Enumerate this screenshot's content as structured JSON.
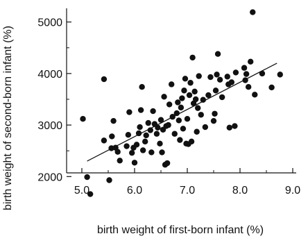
{
  "chart_data": {
    "type": "scatter",
    "title": "",
    "xlabel": "birth weight of first-born infant (%)",
    "ylabel": "birth weight of second-born infant (%)",
    "xlim": [
      5.0,
      9.0
    ],
    "ylim": [
      1600,
      5400
    ],
    "x_ticks": [
      5.0,
      6.0,
      7.0,
      8.0,
      9.0
    ],
    "x_tick_labels": [
      "5.0",
      "6.0",
      "7.0",
      "8.0",
      "9.0"
    ],
    "y_ticks": [
      2000,
      3000,
      4000,
      5000
    ],
    "y_tick_labels": [
      "2000",
      "3000",
      "4000",
      "5000"
    ],
    "grid": false,
    "legend": "none",
    "point_color": "#111111",
    "trend_line": {
      "x": [
        5.1,
        8.7
      ],
      "y": [
        2300,
        4200
      ]
    },
    "points": [
      {
        "x": 5.02,
        "y": 3120
      },
      {
        "x": 5.1,
        "y": 1990
      },
      {
        "x": 5.16,
        "y": 1660
      },
      {
        "x": 5.42,
        "y": 3890
      },
      {
        "x": 5.42,
        "y": 2700
      },
      {
        "x": 5.52,
        "y": 1930
      },
      {
        "x": 5.56,
        "y": 2550
      },
      {
        "x": 5.57,
        "y": 2780
      },
      {
        "x": 5.6,
        "y": 3080
      },
      {
        "x": 5.64,
        "y": 2560
      },
      {
        "x": 5.68,
        "y": 2480
      },
      {
        "x": 5.72,
        "y": 2310
      },
      {
        "x": 5.85,
        "y": 2590
      },
      {
        "x": 5.88,
        "y": 2810
      },
      {
        "x": 5.9,
        "y": 3250
      },
      {
        "x": 5.95,
        "y": 2460
      },
      {
        "x": 5.98,
        "y": 2560
      },
      {
        "x": 6.0,
        "y": 2270
      },
      {
        "x": 6.04,
        "y": 2620
      },
      {
        "x": 6.08,
        "y": 2840
      },
      {
        "x": 6.1,
        "y": 2960
      },
      {
        "x": 6.12,
        "y": 3290
      },
      {
        "x": 6.14,
        "y": 3740
      },
      {
        "x": 6.16,
        "y": 2510
      },
      {
        "x": 6.2,
        "y": 2680
      },
      {
        "x": 6.22,
        "y": 2800
      },
      {
        "x": 6.26,
        "y": 3040
      },
      {
        "x": 6.3,
        "y": 2900
      },
      {
        "x": 6.32,
        "y": 2470
      },
      {
        "x": 6.35,
        "y": 3270
      },
      {
        "x": 6.38,
        "y": 3020
      },
      {
        "x": 6.42,
        "y": 2830
      },
      {
        "x": 6.44,
        "y": 2950
      },
      {
        "x": 6.48,
        "y": 2640
      },
      {
        "x": 6.5,
        "y": 3100
      },
      {
        "x": 6.52,
        "y": 2470
      },
      {
        "x": 6.54,
        "y": 2910
      },
      {
        "x": 6.56,
        "y": 3550
      },
      {
        "x": 6.58,
        "y": 2230
      },
      {
        "x": 6.6,
        "y": 2980
      },
      {
        "x": 6.62,
        "y": 2260
      },
      {
        "x": 6.64,
        "y": 3000
      },
      {
        "x": 6.66,
        "y": 3400
      },
      {
        "x": 6.7,
        "y": 3790
      },
      {
        "x": 6.72,
        "y": 3160
      },
      {
        "x": 6.76,
        "y": 2830
      },
      {
        "x": 6.8,
        "y": 3230
      },
      {
        "x": 6.82,
        "y": 3440
      },
      {
        "x": 6.84,
        "y": 3090
      },
      {
        "x": 6.86,
        "y": 2710
      },
      {
        "x": 6.88,
        "y": 3340
      },
      {
        "x": 6.9,
        "y": 3520
      },
      {
        "x": 6.92,
        "y": 2930
      },
      {
        "x": 6.94,
        "y": 3670
      },
      {
        "x": 6.96,
        "y": 3900
      },
      {
        "x": 6.98,
        "y": 2640
      },
      {
        "x": 7.0,
        "y": 3120
      },
      {
        "x": 7.02,
        "y": 2630
      },
      {
        "x": 7.04,
        "y": 3580
      },
      {
        "x": 7.06,
        "y": 3820
      },
      {
        "x": 7.08,
        "y": 2680
      },
      {
        "x": 7.1,
        "y": 4310
      },
      {
        "x": 7.12,
        "y": 3420
      },
      {
        "x": 7.14,
        "y": 3650
      },
      {
        "x": 7.16,
        "y": 3500
      },
      {
        "x": 7.18,
        "y": 2870
      },
      {
        "x": 7.2,
        "y": 3330
      },
      {
        "x": 7.22,
        "y": 3950
      },
      {
        "x": 7.26,
        "y": 3200
      },
      {
        "x": 7.3,
        "y": 3490
      },
      {
        "x": 7.34,
        "y": 2960
      },
      {
        "x": 7.4,
        "y": 3580
      },
      {
        "x": 7.44,
        "y": 3930
      },
      {
        "x": 7.5,
        "y": 3080
      },
      {
        "x": 7.52,
        "y": 3220
      },
      {
        "x": 7.54,
        "y": 3670
      },
      {
        "x": 7.56,
        "y": 3980
      },
      {
        "x": 7.58,
        "y": 4380
      },
      {
        "x": 7.62,
        "y": 3880
      },
      {
        "x": 7.66,
        "y": 3540
      },
      {
        "x": 7.76,
        "y": 3940
      },
      {
        "x": 7.78,
        "y": 3790
      },
      {
        "x": 7.8,
        "y": 2950
      },
      {
        "x": 7.84,
        "y": 3830
      },
      {
        "x": 7.9,
        "y": 2980
      },
      {
        "x": 7.92,
        "y": 4020
      },
      {
        "x": 8.08,
        "y": 4110
      },
      {
        "x": 8.1,
        "y": 3870
      },
      {
        "x": 8.12,
        "y": 3990
      },
      {
        "x": 8.16,
        "y": 3740
      },
      {
        "x": 8.2,
        "y": 4230
      },
      {
        "x": 8.24,
        "y": 5190
      },
      {
        "x": 8.28,
        "y": 3590
      },
      {
        "x": 8.42,
        "y": 4000
      },
      {
        "x": 8.6,
        "y": 3730
      },
      {
        "x": 8.76,
        "y": 3980
      }
    ]
  }
}
